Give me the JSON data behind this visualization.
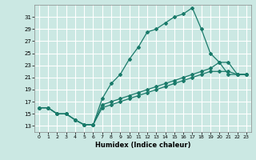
{
  "xlabel": "Humidex (Indice chaleur)",
  "background_color": "#cbe8e3",
  "grid_color": "#ffffff",
  "line_color": "#1a7a6a",
  "xlim": [
    -0.5,
    23.5
  ],
  "ylim": [
    12,
    33
  ],
  "xticks": [
    0,
    1,
    2,
    3,
    4,
    5,
    6,
    7,
    8,
    9,
    10,
    11,
    12,
    13,
    14,
    15,
    16,
    17,
    18,
    19,
    20,
    21,
    22,
    23
  ],
  "yticks": [
    13,
    15,
    17,
    19,
    21,
    23,
    25,
    27,
    29,
    31
  ],
  "line1_x": [
    0,
    1,
    2,
    3,
    4,
    5,
    6,
    7,
    8,
    9,
    10,
    11,
    12,
    13,
    14,
    15,
    16,
    17,
    18,
    19,
    20,
    21,
    22,
    23
  ],
  "line1_y": [
    16,
    16,
    15,
    15,
    14,
    13.2,
    13.2,
    17.5,
    20,
    21.5,
    24,
    26,
    28.5,
    29,
    30,
    31,
    31.5,
    32.5,
    29,
    25,
    23.5,
    21.5,
    21.5,
    21.5
  ],
  "line2_x": [
    0,
    1,
    2,
    3,
    4,
    5,
    6,
    7,
    8,
    9,
    10,
    11,
    12,
    13,
    14,
    15,
    16,
    17,
    18,
    19,
    20,
    21,
    22,
    23
  ],
  "line2_y": [
    16,
    16,
    15,
    15,
    14,
    13.2,
    13.2,
    16.5,
    17,
    17.5,
    18,
    18.5,
    19,
    19.5,
    20,
    20.5,
    21,
    21.5,
    22,
    22.5,
    23.5,
    23.5,
    21.5,
    21.5
  ],
  "line3_x": [
    0,
    1,
    2,
    3,
    4,
    5,
    6,
    7,
    8,
    9,
    10,
    11,
    12,
    13,
    14,
    15,
    16,
    17,
    18,
    19,
    20,
    21,
    22,
    23
  ],
  "line3_y": [
    16,
    16,
    15,
    15,
    14,
    13.2,
    13.2,
    16,
    16.5,
    17,
    17.5,
    18,
    18.5,
    19,
    19.5,
    20,
    20.5,
    21,
    21.5,
    22,
    22,
    22,
    21.5,
    21.5
  ]
}
